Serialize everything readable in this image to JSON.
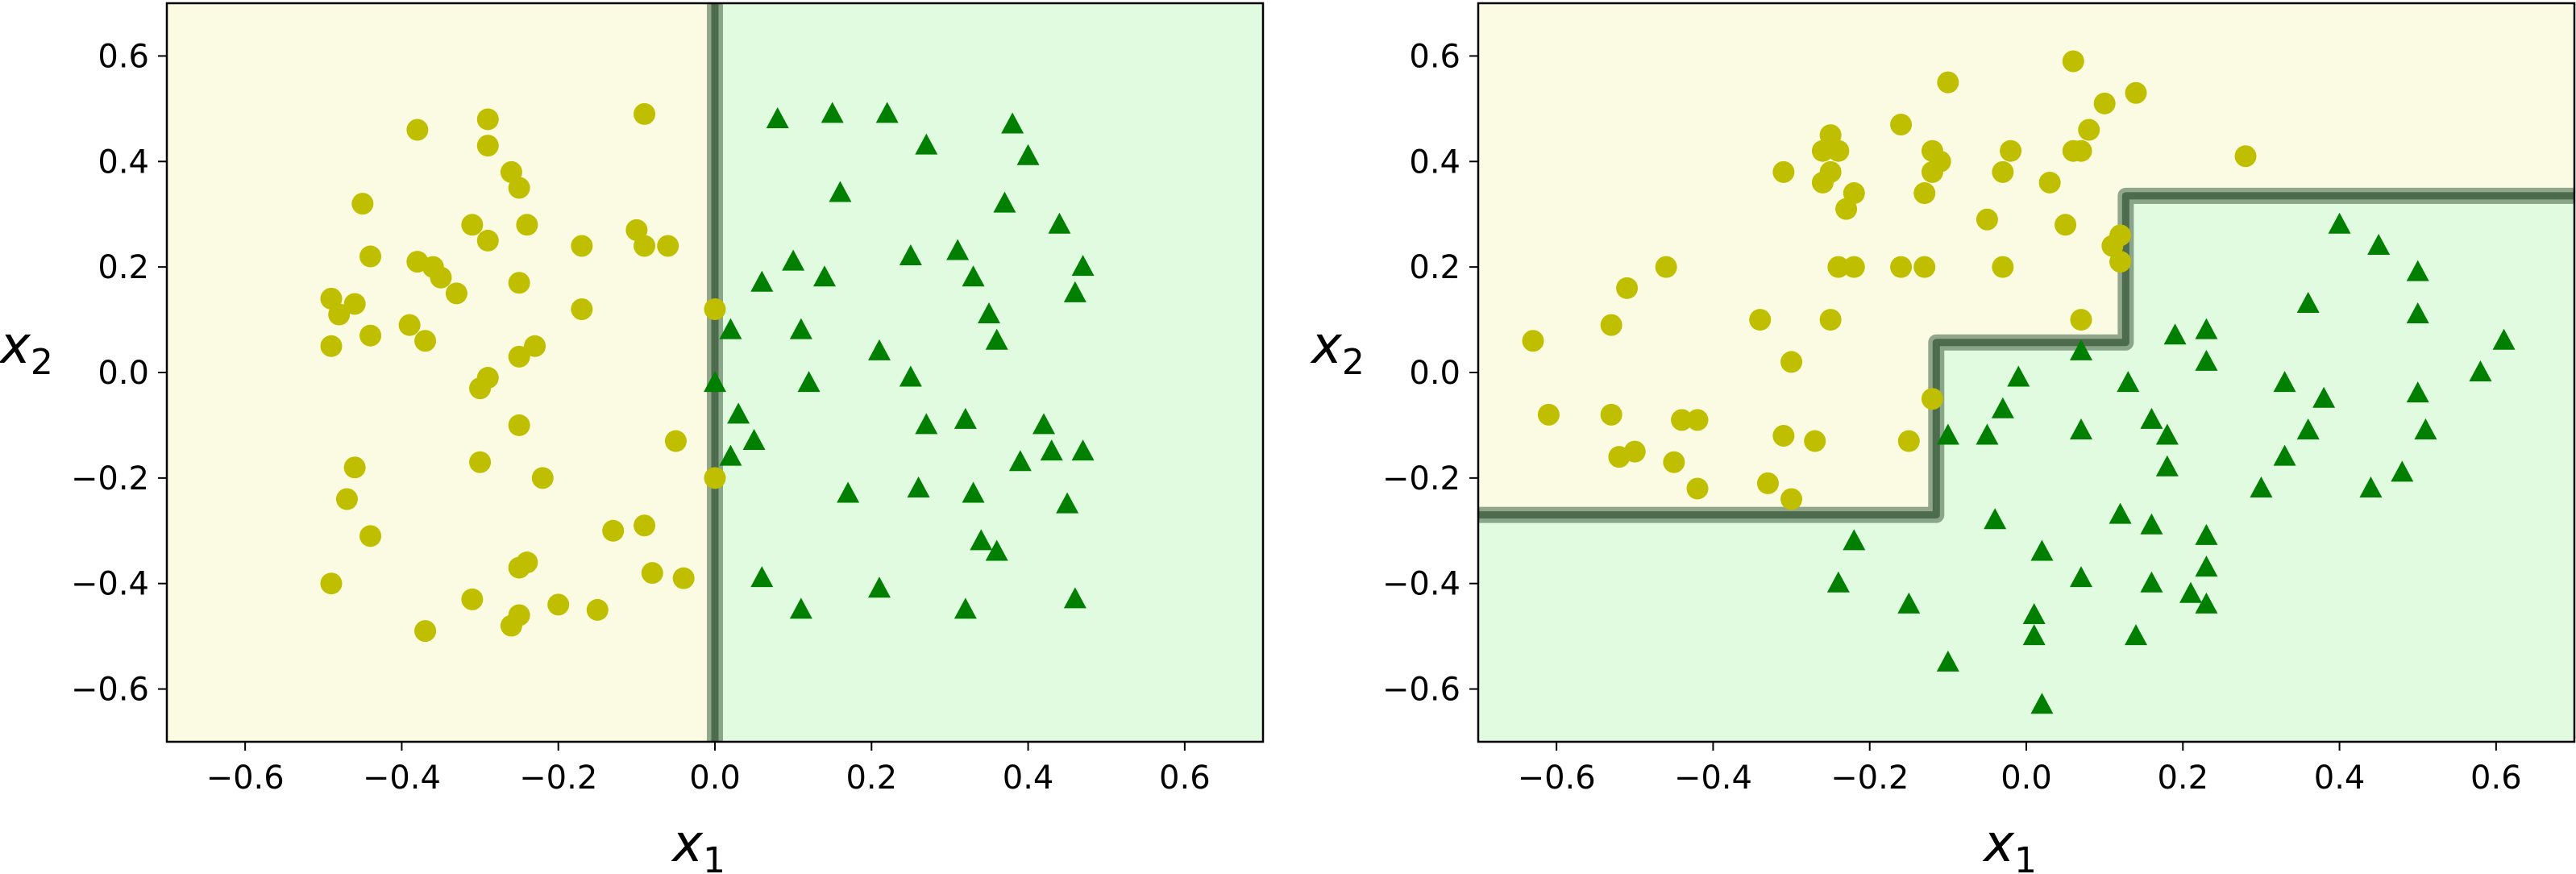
{
  "chart_data": [
    {
      "type": "scatter",
      "title": "",
      "xlabel": "x",
      "xlabel_sub": "1",
      "ylabel": "x",
      "ylabel_sub": "2",
      "xlim": [
        -0.7,
        0.7
      ],
      "ylim": [
        -0.7,
        0.7
      ],
      "xticks": [
        -0.6,
        -0.4,
        -0.2,
        0.0,
        0.2,
        0.4,
        0.6
      ],
      "yticks": [
        -0.6,
        -0.4,
        -0.2,
        0.0,
        0.2,
        0.4,
        0.6
      ],
      "xtick_labels": [
        "−0.6",
        "−0.4",
        "−0.2",
        "0.0",
        "0.2",
        "0.4",
        "0.6"
      ],
      "ytick_labels": [
        "−0.6",
        "−0.4",
        "−0.2",
        "0.0",
        "0.2",
        "0.4",
        "0.6"
      ],
      "grid": false,
      "region_colors": {
        "class0": "#fbfbe4",
        "class1": "#e0fbe0"
      },
      "boundary": {
        "color": "#4d6b4d",
        "points": [
          [
            0.0,
            0.7
          ],
          [
            0.0,
            -0.7
          ]
        ]
      },
      "series": [
        {
          "marker": "circle",
          "color": "#bfbf00",
          "points": [
            [
              -0.38,
              0.46
            ],
            [
              -0.29,
              0.48
            ],
            [
              -0.09,
              0.49
            ],
            [
              -0.29,
              0.43
            ],
            [
              -0.26,
              0.38
            ],
            [
              -0.25,
              0.35
            ],
            [
              -0.45,
              0.32
            ],
            [
              -0.31,
              0.28
            ],
            [
              -0.24,
              0.28
            ],
            [
              -0.29,
              0.25
            ],
            [
              -0.17,
              0.24
            ],
            [
              -0.1,
              0.27
            ],
            [
              -0.09,
              0.24
            ],
            [
              -0.06,
              0.24
            ],
            [
              -0.44,
              0.22
            ],
            [
              -0.38,
              0.21
            ],
            [
              -0.36,
              0.2
            ],
            [
              -0.35,
              0.18
            ],
            [
              -0.33,
              0.15
            ],
            [
              -0.25,
              0.17
            ],
            [
              -0.49,
              0.14
            ],
            [
              -0.46,
              0.13
            ],
            [
              -0.48,
              0.11
            ],
            [
              -0.17,
              0.12
            ],
            [
              -0.39,
              0.09
            ],
            [
              -0.44,
              0.07
            ],
            [
              -0.37,
              0.06
            ],
            [
              -0.49,
              0.05
            ],
            [
              -0.23,
              0.05
            ],
            [
              -0.25,
              0.03
            ],
            [
              -0.29,
              -0.01
            ],
            [
              -0.3,
              -0.03
            ],
            [
              0.0,
              0.12
            ],
            [
              -0.25,
              -0.1
            ],
            [
              -0.05,
              -0.13
            ],
            [
              -0.3,
              -0.17
            ],
            [
              -0.46,
              -0.18
            ],
            [
              -0.22,
              -0.2
            ],
            [
              0.0,
              -0.2
            ],
            [
              -0.47,
              -0.24
            ],
            [
              -0.13,
              -0.3
            ],
            [
              -0.09,
              -0.29
            ],
            [
              -0.44,
              -0.31
            ],
            [
              -0.24,
              -0.36
            ],
            [
              -0.25,
              -0.37
            ],
            [
              -0.08,
              -0.38
            ],
            [
              -0.04,
              -0.39
            ],
            [
              -0.49,
              -0.4
            ],
            [
              -0.31,
              -0.43
            ],
            [
              -0.2,
              -0.44
            ],
            [
              -0.15,
              -0.45
            ],
            [
              -0.25,
              -0.46
            ],
            [
              -0.26,
              -0.48
            ],
            [
              -0.37,
              -0.49
            ]
          ]
        },
        {
          "marker": "triangle",
          "color": "#007f00",
          "points": [
            [
              0.08,
              0.48
            ],
            [
              0.15,
              0.49
            ],
            [
              0.22,
              0.49
            ],
            [
              0.27,
              0.43
            ],
            [
              0.38,
              0.47
            ],
            [
              0.4,
              0.41
            ],
            [
              0.16,
              0.34
            ],
            [
              0.37,
              0.32
            ],
            [
              0.44,
              0.28
            ],
            [
              0.1,
              0.21
            ],
            [
              0.25,
              0.22
            ],
            [
              0.31,
              0.23
            ],
            [
              0.14,
              0.18
            ],
            [
              0.47,
              0.2
            ],
            [
              0.33,
              0.18
            ],
            [
              0.06,
              0.17
            ],
            [
              0.46,
              0.15
            ],
            [
              0.35,
              0.11
            ],
            [
              0.02,
              0.08
            ],
            [
              0.11,
              0.08
            ],
            [
              0.36,
              0.06
            ],
            [
              0.21,
              0.04
            ],
            [
              0.0,
              -0.02
            ],
            [
              0.12,
              -0.02
            ],
            [
              0.25,
              -0.01
            ],
            [
              0.03,
              -0.08
            ],
            [
              0.05,
              -0.13
            ],
            [
              0.27,
              -0.1
            ],
            [
              0.32,
              -0.09
            ],
            [
              0.42,
              -0.1
            ],
            [
              0.02,
              -0.16
            ],
            [
              0.43,
              -0.15
            ],
            [
              0.47,
              -0.15
            ],
            [
              0.39,
              -0.17
            ],
            [
              0.17,
              -0.23
            ],
            [
              0.26,
              -0.22
            ],
            [
              0.33,
              -0.23
            ],
            [
              0.45,
              -0.25
            ],
            [
              0.34,
              -0.32
            ],
            [
              0.36,
              -0.34
            ],
            [
              0.06,
              -0.39
            ],
            [
              0.21,
              -0.41
            ],
            [
              0.11,
              -0.45
            ],
            [
              0.32,
              -0.45
            ],
            [
              0.46,
              -0.43
            ]
          ]
        }
      ]
    },
    {
      "type": "scatter",
      "title": "",
      "xlabel": "x",
      "xlabel_sub": "1",
      "ylabel": "x",
      "ylabel_sub": "2",
      "xlim": [
        -0.7,
        0.7
      ],
      "ylim": [
        -0.7,
        0.7
      ],
      "xticks": [
        -0.6,
        -0.4,
        -0.2,
        0.0,
        0.2,
        0.4,
        0.6
      ],
      "yticks": [
        -0.6,
        -0.4,
        -0.2,
        0.0,
        0.2,
        0.4,
        0.6
      ],
      "xtick_labels": [
        "−0.6",
        "−0.4",
        "−0.2",
        "0.0",
        "0.2",
        "0.4",
        "0.6"
      ],
      "ytick_labels": [
        "−0.6",
        "−0.4",
        "−0.2",
        "0.0",
        "0.2",
        "0.4",
        "0.6"
      ],
      "grid": false,
      "region_colors": {
        "class0": "#fbfbe4",
        "class1": "#e0fbe0"
      },
      "boundary": {
        "color": "#4d6b4d",
        "points": [
          [
            -0.7,
            -0.27
          ],
          [
            -0.115,
            -0.27
          ],
          [
            -0.115,
            0.057
          ],
          [
            0.127,
            0.057
          ],
          [
            0.127,
            0.335
          ],
          [
            0.7,
            0.335
          ]
        ]
      },
      "series": [
        {
          "marker": "circle",
          "color": "#bfbf00",
          "points": [
            [
              0.06,
              0.59
            ],
            [
              -0.1,
              0.55
            ],
            [
              0.14,
              0.53
            ],
            [
              0.1,
              0.51
            ],
            [
              -0.16,
              0.47
            ],
            [
              -0.25,
              0.45
            ],
            [
              0.08,
              0.46
            ],
            [
              -0.26,
              0.42
            ],
            [
              -0.24,
              0.42
            ],
            [
              -0.12,
              0.42
            ],
            [
              -0.02,
              0.42
            ],
            [
              0.07,
              0.42
            ],
            [
              0.06,
              0.42
            ],
            [
              -0.11,
              0.4
            ],
            [
              -0.12,
              0.38
            ],
            [
              -0.31,
              0.38
            ],
            [
              -0.25,
              0.38
            ],
            [
              -0.03,
              0.38
            ],
            [
              0.28,
              0.41
            ],
            [
              -0.26,
              0.36
            ],
            [
              -0.22,
              0.34
            ],
            [
              -0.13,
              0.34
            ],
            [
              0.03,
              0.36
            ],
            [
              -0.23,
              0.31
            ],
            [
              -0.05,
              0.29
            ],
            [
              0.05,
              0.28
            ],
            [
              0.12,
              0.26
            ],
            [
              0.11,
              0.24
            ],
            [
              0.12,
              0.21
            ],
            [
              -0.46,
              0.2
            ],
            [
              -0.24,
              0.2
            ],
            [
              -0.22,
              0.2
            ],
            [
              -0.16,
              0.2
            ],
            [
              -0.13,
              0.2
            ],
            [
              -0.03,
              0.2
            ],
            [
              -0.51,
              0.16
            ],
            [
              -0.34,
              0.1
            ],
            [
              -0.25,
              0.1
            ],
            [
              0.07,
              0.1
            ],
            [
              -0.53,
              0.09
            ],
            [
              -0.63,
              0.06
            ],
            [
              -0.3,
              0.02
            ],
            [
              -0.12,
              -0.05
            ],
            [
              -0.61,
              -0.08
            ],
            [
              -0.53,
              -0.08
            ],
            [
              -0.44,
              -0.09
            ],
            [
              -0.42,
              -0.09
            ],
            [
              -0.31,
              -0.12
            ],
            [
              -0.27,
              -0.13
            ],
            [
              -0.15,
              -0.13
            ],
            [
              -0.52,
              -0.16
            ],
            [
              -0.5,
              -0.15
            ],
            [
              -0.45,
              -0.17
            ],
            [
              -0.42,
              -0.22
            ],
            [
              -0.33,
              -0.21
            ],
            [
              -0.3,
              -0.24
            ]
          ]
        },
        {
          "marker": "triangle",
          "color": "#007f00",
          "points": [
            [
              0.4,
              0.28
            ],
            [
              0.45,
              0.24
            ],
            [
              0.5,
              0.19
            ],
            [
              0.36,
              0.13
            ],
            [
              0.5,
              0.11
            ],
            [
              0.19,
              0.07
            ],
            [
              0.23,
              0.08
            ],
            [
              0.61,
              0.06
            ],
            [
              0.07,
              0.04
            ],
            [
              0.23,
              0.02
            ],
            [
              0.58,
              0.0
            ],
            [
              -0.01,
              -0.01
            ],
            [
              0.13,
              -0.02
            ],
            [
              0.33,
              -0.02
            ],
            [
              0.5,
              -0.04
            ],
            [
              0.38,
              -0.05
            ],
            [
              -0.03,
              -0.07
            ],
            [
              0.16,
              -0.09
            ],
            [
              -0.1,
              -0.12
            ],
            [
              -0.05,
              -0.12
            ],
            [
              0.07,
              -0.11
            ],
            [
              0.18,
              -0.12
            ],
            [
              0.36,
              -0.11
            ],
            [
              0.51,
              -0.11
            ],
            [
              0.33,
              -0.16
            ],
            [
              0.18,
              -0.18
            ],
            [
              0.48,
              -0.19
            ],
            [
              0.3,
              -0.22
            ],
            [
              0.44,
              -0.22
            ],
            [
              0.12,
              -0.27
            ],
            [
              0.16,
              -0.29
            ],
            [
              -0.04,
              -0.28
            ],
            [
              0.23,
              -0.31
            ],
            [
              -0.22,
              -0.32
            ],
            [
              0.02,
              -0.34
            ],
            [
              0.23,
              -0.37
            ],
            [
              -0.24,
              -0.4
            ],
            [
              0.07,
              -0.39
            ],
            [
              0.16,
              -0.4
            ],
            [
              0.21,
              -0.42
            ],
            [
              0.23,
              -0.44
            ],
            [
              -0.15,
              -0.44
            ],
            [
              0.01,
              -0.46
            ],
            [
              0.14,
              -0.5
            ],
            [
              0.01,
              -0.5
            ],
            [
              -0.1,
              -0.55
            ],
            [
              0.02,
              -0.63
            ]
          ]
        }
      ]
    }
  ]
}
